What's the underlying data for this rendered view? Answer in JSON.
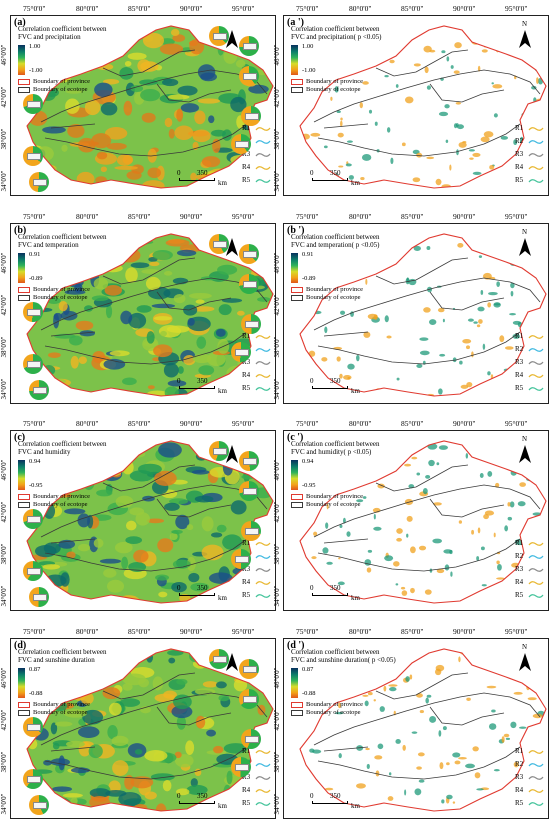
{
  "longitude_labels": [
    "75°0'0\"",
    "80°0'0\"",
    "85°0'0\"",
    "90°0'0\"",
    "95°0'0\""
  ],
  "latitude_labels": [
    "46°0'0\"",
    "42°0'0\"",
    "38°0'0\"",
    "34°0'0\""
  ],
  "scale": {
    "zero": "0",
    "value": "350",
    "unit": "km"
  },
  "boundary_province_label": "Boundary of province",
  "boundary_ecotope_label": "Boundary of ecotope",
  "region_labels": [
    "R1",
    "R2",
    "R3",
    "R4",
    "R5"
  ],
  "north_label": "N",
  "colors": {
    "province_boundary": "#e03a30",
    "ecotope_boundary": "#3a3a3a",
    "r1": "#e8b730",
    "r2": "#3fb9e0",
    "r3": "#8a8a8a",
    "r4": "#e8b730",
    "r5": "#43c39a",
    "pie_green": "#2db04a",
    "pie_orange": "#f2a51c"
  },
  "panels": [
    {
      "label": "(a)",
      "title_line1": "Correlation coefficient between",
      "title_line2": "FVC and precipitation",
      "max": "1.00",
      "min": "-1.00",
      "significant": false
    },
    {
      "label": "(a ')",
      "title_line1": "Correlation coefficient between",
      "title_line2": "FVC and precipitation( p <0.05)",
      "max": "1.00",
      "min": "-1.00",
      "significant": true
    },
    {
      "label": "(b)",
      "title_line1": "Correlation coefficient between",
      "title_line2": "FVC and temperation",
      "max": "0.91",
      "min": "-0.89",
      "significant": false
    },
    {
      "label": "(b ')",
      "title_line1": "Correlation coefficient between",
      "title_line2": "FVC and temperation( p <0.05)",
      "max": "0.91",
      "min": "-0.89",
      "significant": true
    },
    {
      "label": "(c)",
      "title_line1": "Correlation coefficient between",
      "title_line2": "FVC and humidity",
      "max": "0.94",
      "min": "-0.95",
      "significant": false
    },
    {
      "label": "(c ')",
      "title_line1": "Correlation coefficient between",
      "title_line2": "FVC and humidity( p <0.05)",
      "max": "0.94",
      "min": "-0.95",
      "significant": true
    },
    {
      "label": "(d)",
      "title_line1": "Correlation coefficient between",
      "title_line2": "FVC and sunshine duration",
      "max": "0.87",
      "min": "-0.88",
      "significant": false
    },
    {
      "label": "(d ')",
      "title_line1": "Correlation coefficient between",
      "title_line2": "FVC and sunshine duration( p <0.05)",
      "max": "0.87",
      "min": "-0.88",
      "significant": true
    }
  ]
}
